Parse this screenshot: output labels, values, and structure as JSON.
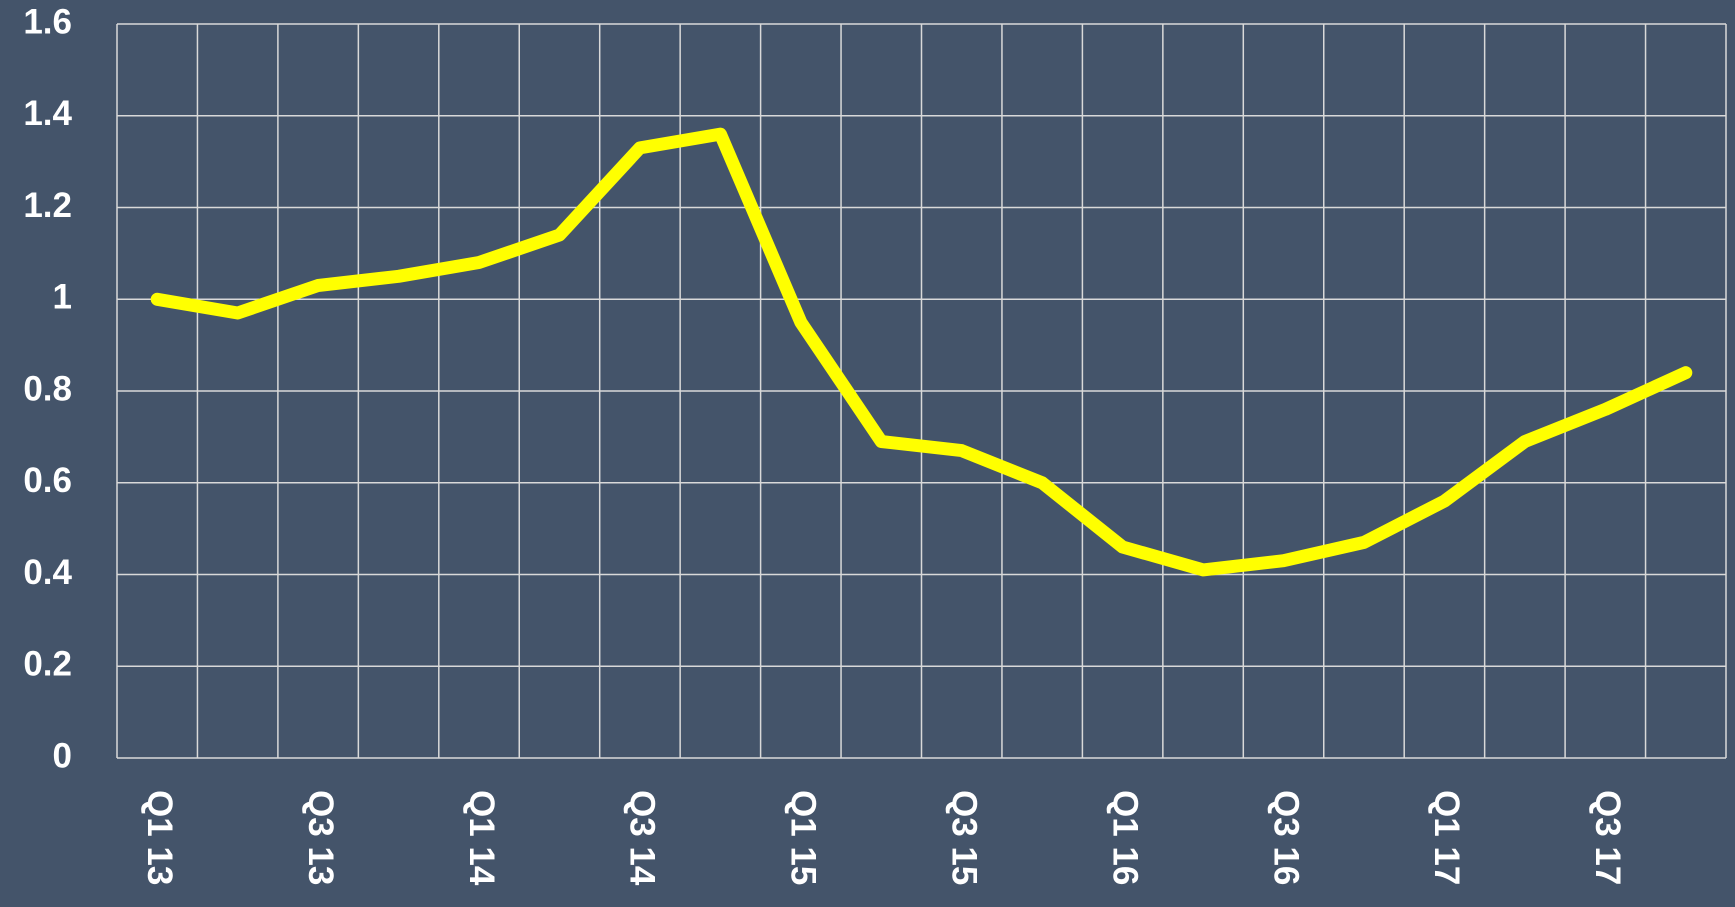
{
  "chart_data": {
    "type": "line",
    "categories": [
      "Q1 13",
      null,
      "Q3 13",
      null,
      "Q1 14",
      null,
      "Q3 14",
      null,
      "Q1 15",
      null,
      "Q3 15",
      null,
      "Q1 16",
      null,
      "Q3 16",
      null,
      "Q1 17",
      null,
      "Q3 17",
      null
    ],
    "values": [
      1.0,
      0.97,
      1.03,
      1.05,
      1.08,
      1.14,
      1.33,
      1.36,
      0.95,
      0.69,
      0.67,
      0.6,
      0.46,
      0.41,
      0.43,
      0.47,
      0.56,
      0.69,
      0.76,
      0.84
    ],
    "color": "#ffff00",
    "ylim": [
      0,
      1.6
    ],
    "yticks": [
      0,
      0.2,
      0.4,
      0.6,
      0.8,
      1,
      1.2,
      1.4,
      1.6
    ],
    "grid": true
  }
}
